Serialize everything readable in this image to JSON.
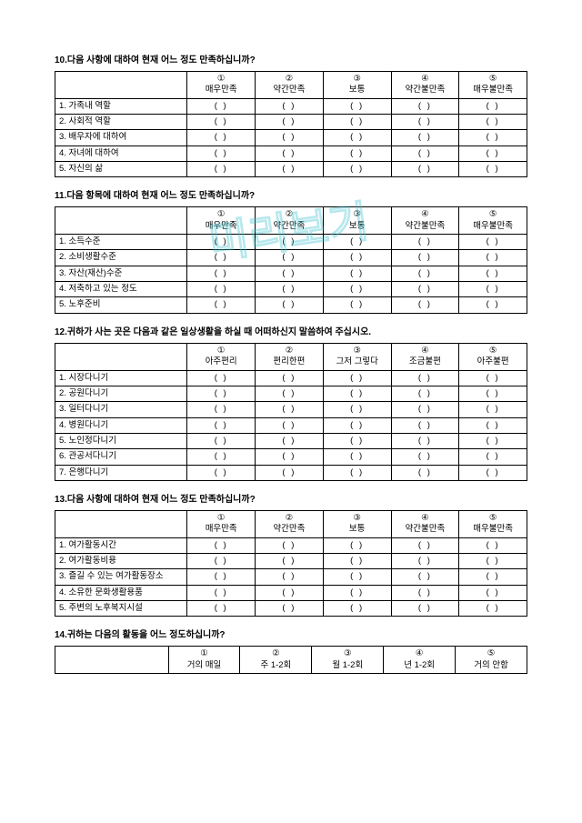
{
  "watermark_text": "미리보기",
  "watermark_color": "#33c0cc",
  "paren_cell": "(      )",
  "circled": [
    "①",
    "②",
    "③",
    "④",
    "⑤"
  ],
  "q10": {
    "title": "10.다음 사항에 대하여 현재 어느 정도 만족하십니까?",
    "options": [
      "매우만족",
      "약간만족",
      "보통",
      "약간불만족",
      "매우불만족"
    ],
    "rows": [
      "1. 가족내 역할",
      "2. 사회적 역할",
      "3. 배우자에 대하여",
      "4. 자녀에 대하여",
      "5. 자신의 삶"
    ]
  },
  "q11": {
    "title": "11.다음 항목에 대하여 현재 어느 정도 만족하십니까?",
    "options": [
      "매우만족",
      "약간만족",
      "보통",
      "약간불만족",
      "매우불만족"
    ],
    "rows": [
      "1. 소득수준",
      "2. 소비생활수준",
      "3. 자산(재산)수준",
      "4. 저축하고 있는 정도",
      "5. 노후준비"
    ]
  },
  "q12": {
    "title": "12.귀하가 사는 곳은 다음과 같은 일상생활을 하실 때 어떠하신지 말씀하여 주십시오.",
    "options": [
      "아주편리",
      "편리한편",
      "그저 그렇다",
      "조금불편",
      "아주불편"
    ],
    "rows": [
      "1. 시장다니기",
      "2. 공원다니기",
      "3. 일터다니기",
      "4. 병원다니기",
      "5. 노인정다니기",
      "6. 관공서다니기",
      "7. 은행다니기"
    ]
  },
  "q13": {
    "title": "13.다음 사항에 대하여 현재 어느 정도 만족하십니까?",
    "options": [
      "매우만족",
      "약간만족",
      "보통",
      "약간불만족",
      "매우불만족"
    ],
    "rows": [
      "1. 여가활동시간",
      "2. 여가활동비용",
      "3. 즐길 수 있는 여가활동장소",
      "4. 소유한 문화생활용품",
      "5. 주변의 노후복지시설"
    ]
  },
  "q14": {
    "title": "14.귀하는 다음의 활동을 어느 정도하십니까?",
    "options": [
      "거의 매일",
      "주 1-2회",
      "월 1-2회",
      "년 1-2회",
      "거의 안함"
    ]
  }
}
